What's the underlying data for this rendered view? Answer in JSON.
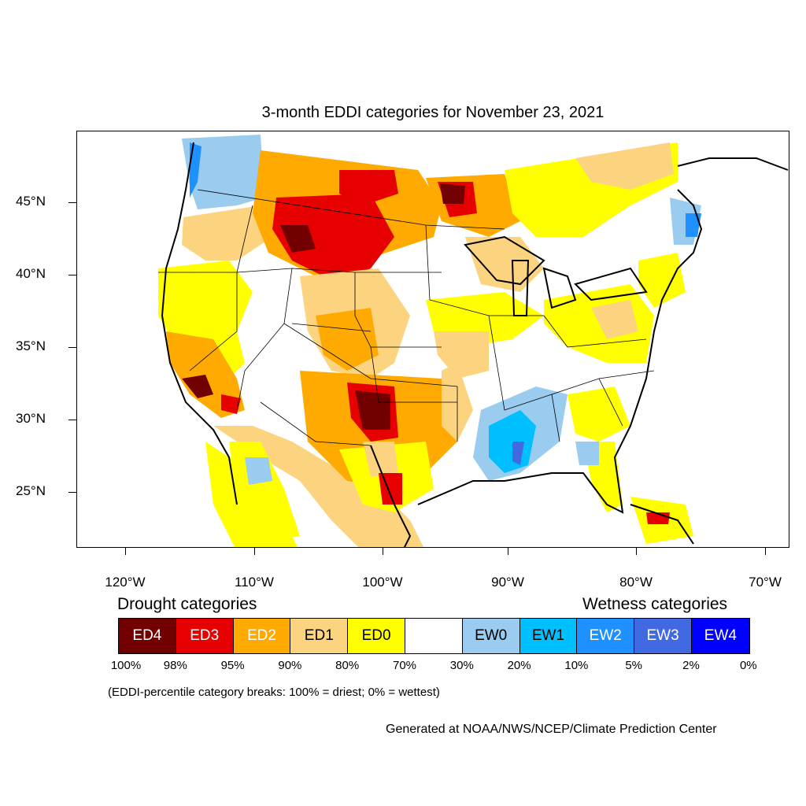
{
  "title": "3-month EDDI categories for November 23, 2021",
  "lat_labels": [
    "45°N",
    "40°N",
    "35°N",
    "30°N",
    "25°N"
  ],
  "lon_labels": [
    "120°W",
    "110°W",
    "100°W",
    "90°W",
    "80°W",
    "70°W"
  ],
  "legend": {
    "drought_heading": "Drought categories",
    "wetness_heading": "Wetness categories",
    "categories": [
      {
        "label": "ED4",
        "color": "#730000"
      },
      {
        "label": "ED3",
        "color": "#e60000"
      },
      {
        "label": "ED2",
        "color": "#ffaa00"
      },
      {
        "label": "ED1",
        "color": "#fcd37f"
      },
      {
        "label": "ED0",
        "color": "#ffff00"
      },
      {
        "label": "",
        "color": "#ffffff"
      },
      {
        "label": "EW0",
        "color": "#99ccee"
      },
      {
        "label": "EW1",
        "color": "#00bfff"
      },
      {
        "label": "EW2",
        "color": "#1e90ff"
      },
      {
        "label": "EW3",
        "color": "#4169e1"
      },
      {
        "label": "EW4",
        "color": "#0000ff"
      }
    ],
    "percent_breaks": [
      "100%",
      "98%",
      "95%",
      "90%",
      "80%",
      "70%",
      "30%",
      "20%",
      "10%",
      "5%",
      "2%",
      "0%"
    ]
  },
  "note": "(EDDI-percentile category breaks: 100% = driest; 0% = wettest)",
  "credit": "Generated at NOAA/NWS/NCEP/Climate Prediction Center"
}
